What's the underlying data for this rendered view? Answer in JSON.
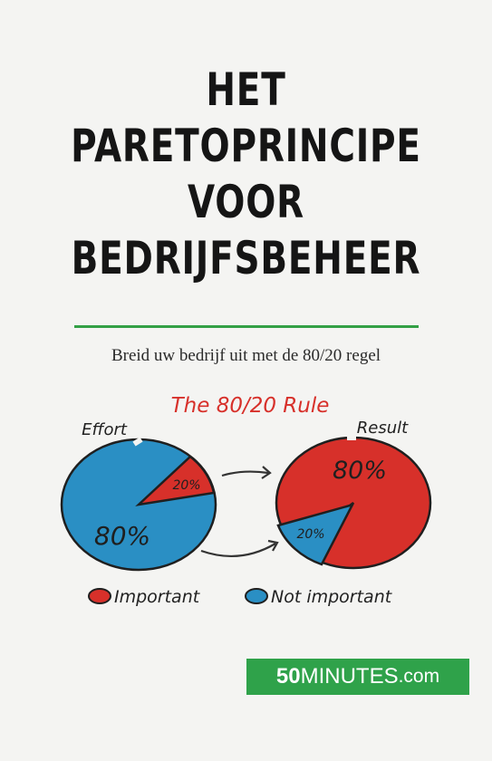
{
  "cover": {
    "title_lines": [
      "HET",
      "PARETOPRINCIPE",
      "VOOR",
      "BEDRIJFSBEHEER"
    ],
    "subtitle": "Breid uw bedrijf uit met de 80/20 regel"
  },
  "illustration": {
    "heading": "The 80/20 Rule",
    "left_label": "Effort",
    "right_label": "Result",
    "left_small": "20%",
    "left_large": "80%",
    "right_large": "80%",
    "right_small": "20%",
    "legend": {
      "important": "Important",
      "not_important": "Not important"
    }
  },
  "brand": {
    "number": "50",
    "word": "MINUTES",
    "tld": ".com"
  },
  "colors": {
    "accent_green": "#33a046",
    "brand_green": "#2fa24a",
    "pie_blue": "#2a8fc4",
    "pie_red": "#d7302a",
    "heading_red": "#d7302a"
  }
}
